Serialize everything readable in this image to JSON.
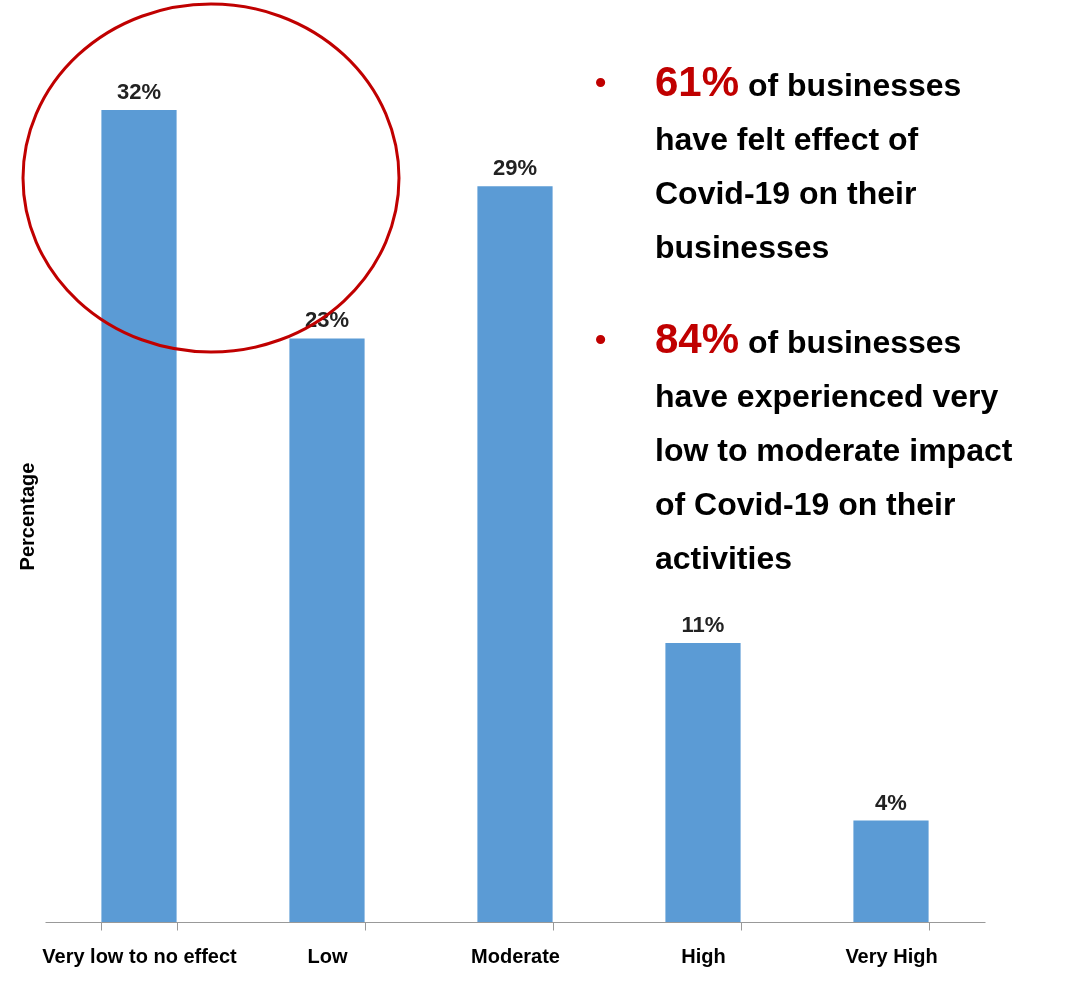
{
  "chart_data": {
    "type": "bar",
    "ylabel": "Percentage",
    "categories": [
      "Very low to no effect",
      "Low",
      "Moderate",
      "High",
      "Very High"
    ],
    "values": [
      32,
      23,
      29,
      11,
      4
    ],
    "value_labels": [
      "32%",
      "23%",
      "29%",
      "11%",
      "4%"
    ],
    "color": "#5b9bd5",
    "grid": false,
    "annotations": [
      "• 61% of businesses have felt effect of Covid-19 on their businesses",
      "• 84% of businesses have experienced very low to moderate impact of Covid-19 on their activities"
    ]
  }
}
